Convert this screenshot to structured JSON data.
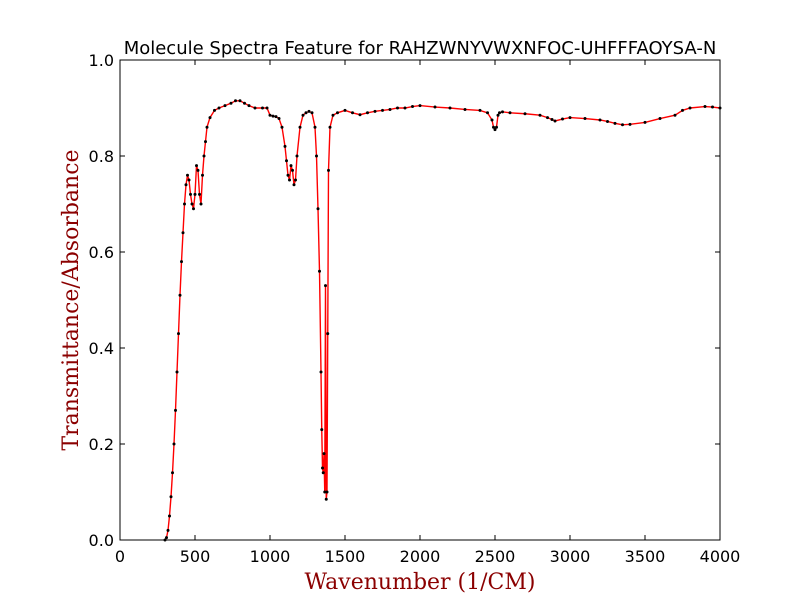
{
  "chart_data": {
    "type": "line",
    "title": "Molecule Spectra Feature for RAHZWNYVWXNFOC-UHFFFAOYSA-N",
    "xlabel": "Wavenumber (1/CM)",
    "ylabel": "Transmittance/Absorbance",
    "xlim": [
      0,
      4000
    ],
    "ylim": [
      0,
      1.0
    ],
    "x_ticks": [
      "0",
      "500",
      "1000",
      "1500",
      "2000",
      "2500",
      "3000",
      "3500",
      "4000"
    ],
    "y_ticks": [
      "0.0",
      "0.2",
      "0.4",
      "0.6",
      "0.8",
      "1.0"
    ],
    "grid": false,
    "colors": {
      "line": "#ff0000",
      "marker": "#000000",
      "label": "#8b0000"
    },
    "series": [
      {
        "x": [
          300,
          310,
          320,
          330,
          340,
          350,
          360,
          370,
          380,
          390,
          400,
          410,
          420,
          430,
          440,
          450,
          460,
          470,
          480,
          490,
          500,
          510,
          520,
          530,
          540,
          550,
          560,
          570,
          580,
          600,
          630,
          660,
          700,
          740,
          770,
          800,
          830,
          860,
          900,
          950,
          980,
          1000,
          1020,
          1040,
          1060,
          1080,
          1100,
          1110,
          1120,
          1130,
          1140,
          1150,
          1160,
          1170,
          1180,
          1200,
          1220,
          1240,
          1260,
          1280,
          1300,
          1310,
          1320,
          1330,
          1340,
          1345,
          1350,
          1355,
          1360,
          1365,
          1370,
          1375,
          1380,
          1385,
          1390,
          1400,
          1420,
          1450,
          1500,
          1550,
          1600,
          1650,
          1700,
          1750,
          1800,
          1850,
          1900,
          1950,
          2000,
          2100,
          2200,
          2300,
          2400,
          2450,
          2480,
          2490,
          2500,
          2510,
          2520,
          2530,
          2550,
          2600,
          2700,
          2800,
          2850,
          2880,
          2900,
          2950,
          3000,
          3100,
          3200,
          3250,
          3300,
          3350,
          3400,
          3500,
          3600,
          3700,
          3750,
          3800,
          3900,
          3950,
          4000
        ],
        "values": [
          0.0,
          0.005,
          0.02,
          0.05,
          0.09,
          0.14,
          0.2,
          0.27,
          0.35,
          0.43,
          0.51,
          0.58,
          0.64,
          0.7,
          0.74,
          0.76,
          0.75,
          0.72,
          0.7,
          0.69,
          0.72,
          0.78,
          0.77,
          0.72,
          0.7,
          0.76,
          0.8,
          0.83,
          0.86,
          0.88,
          0.895,
          0.9,
          0.905,
          0.91,
          0.915,
          0.915,
          0.91,
          0.905,
          0.9,
          0.9,
          0.9,
          0.885,
          0.883,
          0.882,
          0.878,
          0.86,
          0.82,
          0.79,
          0.76,
          0.75,
          0.78,
          0.77,
          0.74,
          0.75,
          0.8,
          0.86,
          0.885,
          0.89,
          0.893,
          0.89,
          0.86,
          0.8,
          0.69,
          0.56,
          0.35,
          0.23,
          0.15,
          0.14,
          0.18,
          0.1,
          0.53,
          0.085,
          0.1,
          0.43,
          0.77,
          0.86,
          0.885,
          0.89,
          0.895,
          0.89,
          0.886,
          0.89,
          0.893,
          0.895,
          0.897,
          0.9,
          0.9,
          0.903,
          0.905,
          0.902,
          0.9,
          0.897,
          0.895,
          0.89,
          0.875,
          0.86,
          0.855,
          0.86,
          0.885,
          0.89,
          0.892,
          0.89,
          0.888,
          0.885,
          0.88,
          0.876,
          0.873,
          0.877,
          0.88,
          0.878,
          0.875,
          0.872,
          0.868,
          0.865,
          0.866,
          0.87,
          0.878,
          0.885,
          0.895,
          0.9,
          0.903,
          0.902,
          0.9
        ]
      }
    ]
  }
}
